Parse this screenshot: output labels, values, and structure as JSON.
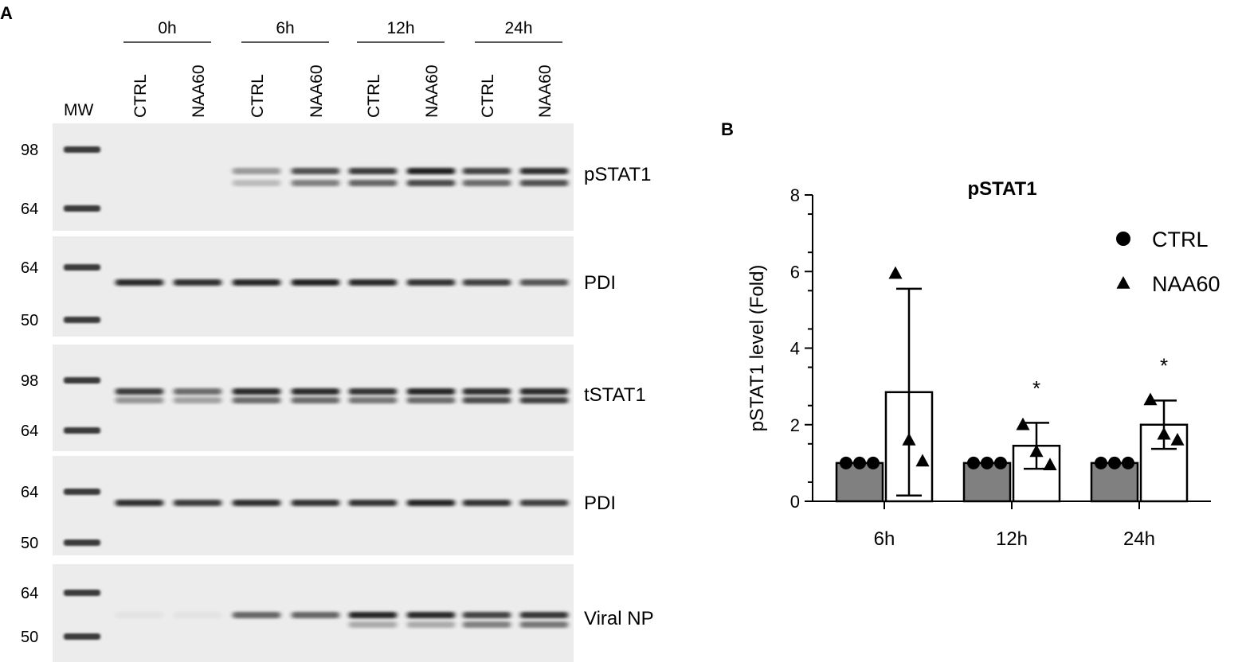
{
  "panel_a": {
    "label": "A",
    "mw_label": "MW",
    "timepoints": [
      "0h",
      "6h",
      "12h",
      "24h"
    ],
    "lanes": [
      "CTRL",
      "NAA60",
      "CTRL",
      "NAA60",
      "CTRL",
      "NAA60",
      "CTRL",
      "NAA60"
    ],
    "blots": [
      {
        "label": "pSTAT1",
        "markers": [
          "98",
          "64"
        ],
        "bands": [
          [
            0,
            0,
            0,
            0.38,
            0.72,
            0.82,
            0.95,
            0.78,
            0.88
          ],
          [
            0,
            0,
            0,
            0.22,
            0.5,
            0.62,
            0.75,
            0.6,
            0.72
          ]
        ]
      },
      {
        "label": "PDI",
        "markers": [
          "64",
          "50"
        ],
        "bands": [
          [
            0,
            0.9,
            0.88,
            0.92,
            0.94,
            0.9,
            0.86,
            0.8,
            0.7
          ]
        ]
      },
      {
        "label": "tSTAT1",
        "markers": [
          "98",
          "64"
        ],
        "bands": [
          [
            0,
            0.82,
            0.6,
            0.9,
            0.9,
            0.86,
            0.92,
            0.88,
            0.9
          ],
          [
            0,
            0.4,
            0.35,
            0.6,
            0.6,
            0.55,
            0.6,
            0.75,
            0.8
          ]
        ]
      },
      {
        "label": "PDI",
        "markers": [
          "64",
          "50"
        ],
        "bands": [
          [
            0,
            0.88,
            0.82,
            0.88,
            0.86,
            0.86,
            0.92,
            0.86,
            0.8
          ]
        ]
      },
      {
        "label": "Viral NP",
        "markers": [
          "64",
          "50"
        ],
        "bands": [
          [
            0,
            0.04,
            0.04,
            0.62,
            0.62,
            0.92,
            0.9,
            0.78,
            0.85
          ],
          [
            0,
            0,
            0,
            0,
            0,
            0.3,
            0.3,
            0.5,
            0.55
          ]
        ]
      }
    ]
  },
  "chart_data": {
    "type": "bar",
    "panel_label": "B",
    "title": "pSTAT1",
    "ylabel": "pSTAT1 level (Fold)",
    "xlabel": "",
    "categories": [
      "6h",
      "12h",
      "24h"
    ],
    "ylim": [
      0,
      8
    ],
    "yticks": [
      "0",
      "2",
      "4",
      "6",
      "8"
    ],
    "grid": false,
    "legend_position": "top-right",
    "series": [
      {
        "name": "CTRL",
        "marker": "circle",
        "fill": "#808080",
        "values": [
          1,
          1,
          1
        ],
        "sd": [
          0,
          0,
          0
        ],
        "points": [
          [
            1,
            1,
            1
          ],
          [
            1,
            1,
            1
          ],
          [
            1,
            1,
            1
          ]
        ]
      },
      {
        "name": "NAA60",
        "marker": "triangle",
        "fill": "#ffffff",
        "values": [
          2.85,
          1.45,
          2.0
        ],
        "sd": [
          2.7,
          0.6,
          0.63
        ],
        "points": [
          [
            5.95,
            1.6,
            1.05
          ],
          [
            2.0,
            1.3,
            0.95
          ],
          [
            2.65,
            1.75,
            1.6
          ]
        ]
      }
    ],
    "annotations": [
      {
        "category": "12h",
        "text": "*",
        "y": 3.05
      },
      {
        "category": "24h",
        "text": "*",
        "y": 3.65
      }
    ]
  }
}
